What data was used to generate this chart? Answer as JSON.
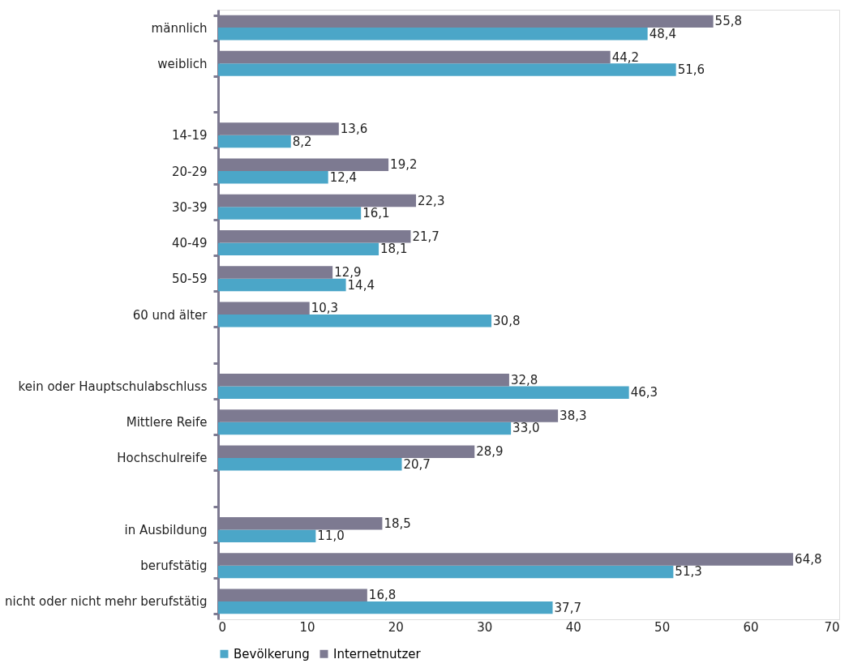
{
  "chart_data": {
    "type": "bar",
    "orientation": "horizontal",
    "categories": [
      "männlich",
      "weiblich",
      null,
      "14-19",
      "20-29",
      "30-39",
      "40-49",
      "50-59",
      "60 und älter",
      null,
      "kein oder Hauptschulabschluss",
      "Mittlere Reife",
      "Hochschulreife",
      null,
      "in Ausbildung",
      "berufstätig",
      "nicht oder nicht mehr berufstätig"
    ],
    "series": [
      {
        "name": "Bevölkerung",
        "color": "#4ba6c8",
        "values": [
          48.4,
          51.6,
          null,
          8.2,
          12.4,
          16.1,
          18.1,
          14.4,
          30.8,
          null,
          46.3,
          33.0,
          20.7,
          null,
          11.0,
          51.3,
          37.7
        ],
        "value_labels": [
          "48,4",
          "51,6",
          null,
          "8,2",
          "12,4",
          "16,1",
          "18,1",
          "14,4",
          "30,8",
          null,
          "46,3",
          "33,0",
          "20,7",
          null,
          "11,0",
          "51,3",
          "37,7"
        ]
      },
      {
        "name": "Internetnutzer",
        "color": "#7d7a91",
        "values": [
          55.8,
          44.2,
          null,
          13.6,
          19.2,
          22.3,
          21.7,
          12.9,
          10.3,
          null,
          32.8,
          38.3,
          28.9,
          null,
          18.5,
          64.8,
          16.8
        ],
        "value_labels": [
          "55,8",
          "44,2",
          null,
          "13,6",
          "19,2",
          "22,3",
          "21,7",
          "12,9",
          "10,3",
          null,
          "32,8",
          "38,3",
          "28,9",
          null,
          "18,5",
          "64,8",
          "16,8"
        ]
      }
    ],
    "xlim": [
      0,
      70
    ],
    "xticks": [
      0,
      10,
      20,
      30,
      40,
      50,
      60,
      70
    ],
    "grid": false,
    "legend": "bottom"
  }
}
